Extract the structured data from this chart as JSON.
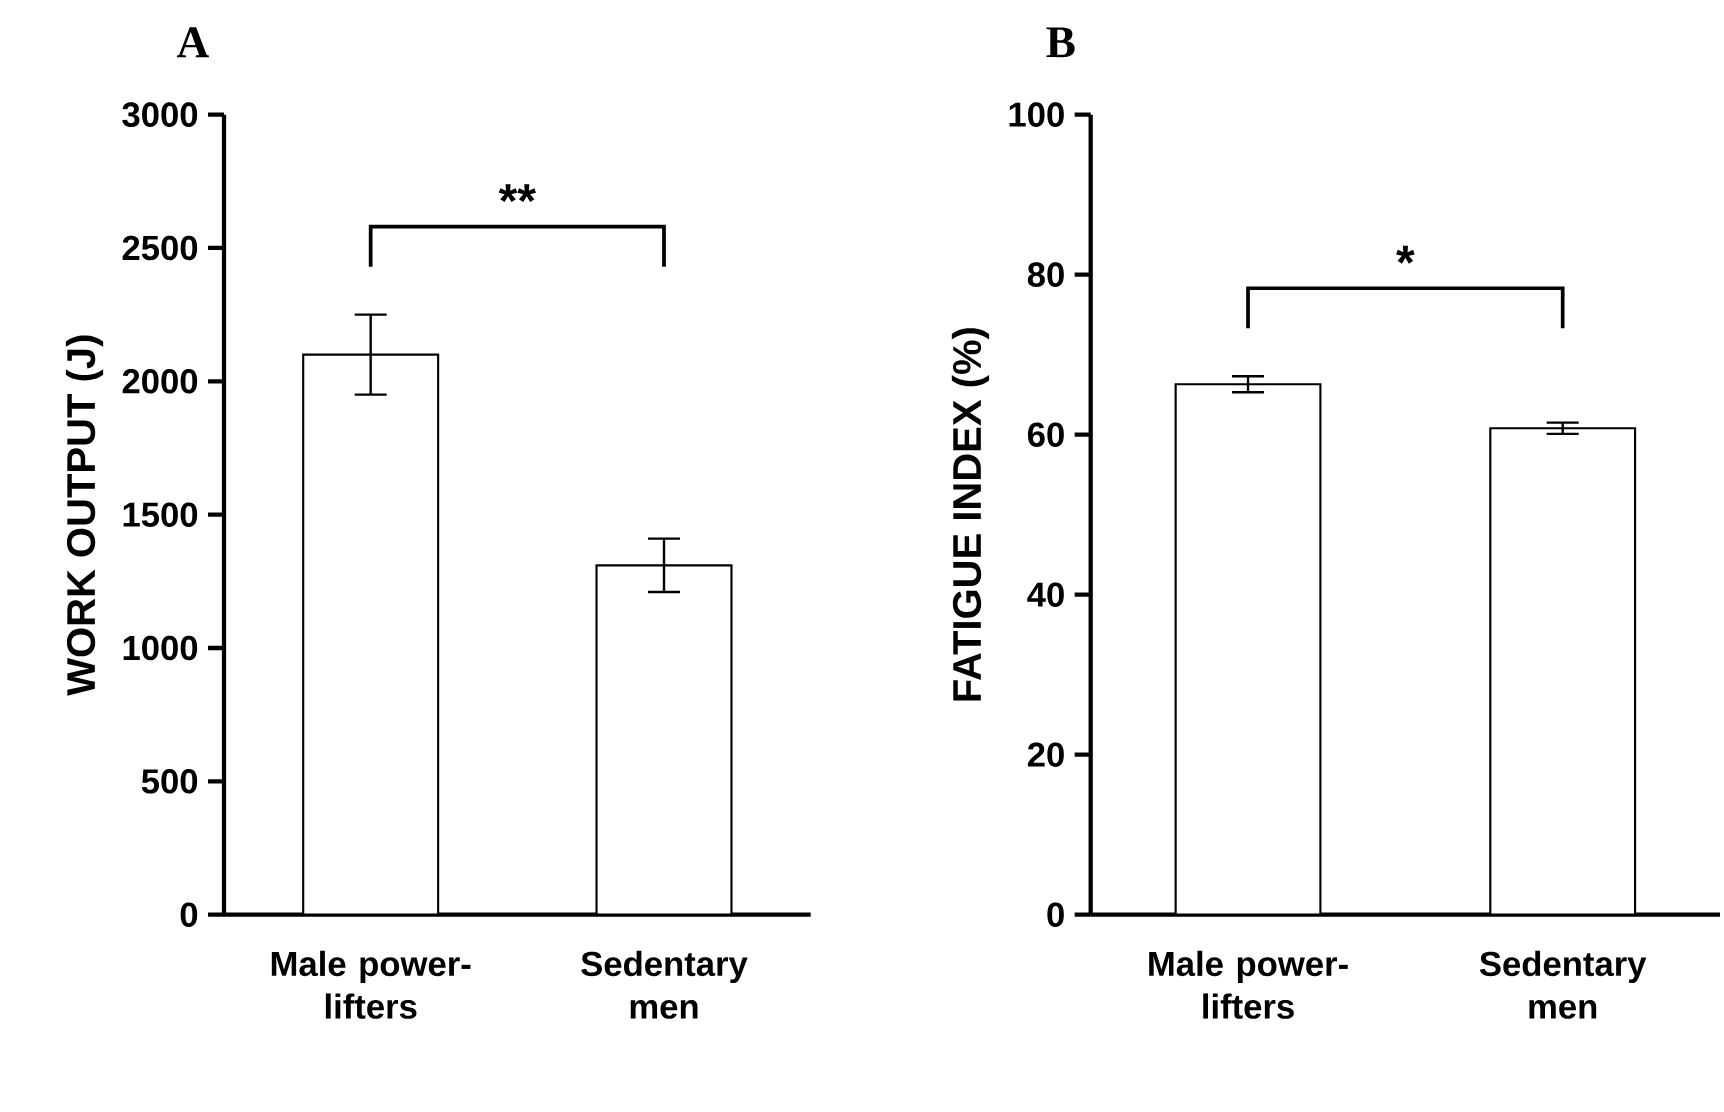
{
  "chart_data": [
    {
      "type": "bar",
      "title": "A",
      "ylabel": "WORK OUTPUT (J)",
      "categories": [
        "Male power-lifters",
        "Sedentary men"
      ],
      "values": [
        2100,
        1310
      ],
      "errors": [
        150,
        100
      ],
      "colors": [
        "#ffffff",
        "#ffffff"
      ],
      "ylim": [
        0,
        3000
      ],
      "yticks": [
        0,
        500,
        1000,
        1500,
        2000,
        2500,
        3000
      ],
      "annotations": [
        "**"
      ]
    },
    {
      "type": "bar",
      "title": "B",
      "ylabel": "FATIGUE INDEX (%)",
      "categories": [
        "Male power-lifters",
        "Sedentary men"
      ],
      "values": [
        66.3,
        60.8
      ],
      "errors": [
        1,
        0.7
      ],
      "colors": [
        "#ffffff",
        "#ffffff"
      ],
      "ylim": [
        0,
        100
      ],
      "yticks": [
        0,
        20,
        40,
        60,
        80,
        100
      ],
      "annotations": [
        "*"
      ]
    }
  ]
}
